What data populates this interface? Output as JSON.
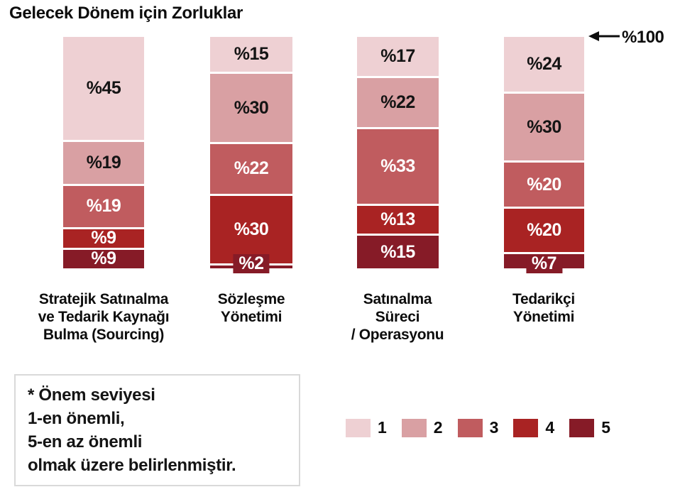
{
  "title": "Gelecek Dönem için Zorluklar",
  "annotation": {
    "max_label": "%100"
  },
  "note": {
    "text": "* Önem seviyesi\n1-en önemli,\n5-en az önemli\nolmak üzere belirlenmiştir."
  },
  "legend": {
    "items": [
      {
        "label": "1",
        "color": "#eed0d3"
      },
      {
        "label": "2",
        "color": "#d9a0a3"
      },
      {
        "label": "3",
        "color": "#c05c5f"
      },
      {
        "label": "4",
        "color": "#a92323"
      },
      {
        "label": "5",
        "color": "#861b27"
      }
    ]
  },
  "chart_data": {
    "type": "bar",
    "stacked": true,
    "orientation": "vertical",
    "units": "percent",
    "title": "Gelecek Dönem için Zorluklar",
    "ylim": [
      0,
      100
    ],
    "grid": false,
    "legend_position": "bottom-right",
    "legend_labels": [
      "1",
      "2",
      "3",
      "4",
      "5"
    ],
    "legend_note": "* Önem seviyesi 1-en önemli, 5-en az önemli olmak üzere belirlenmiştir.",
    "axis_annotation": "%100",
    "palette": {
      "1": "#eed0d3",
      "2": "#d9a0a3",
      "3": "#c05c5f",
      "4": "#a92323",
      "5": "#861b27"
    },
    "label_colors": {
      "1": "#141414",
      "2": "#141414",
      "3": "#ffffff",
      "4": "#ffffff",
      "5": "#ffffff"
    },
    "categories": [
      "Stratejik Satınalma\nve Tedarik Kaynağı\nBulma (Sourcing)",
      "Sözleşme\nYönetimi",
      "Satınalma\nSüreci\n/ Operasyonu",
      "Tedarikçi\nYönetimi"
    ],
    "series": [
      {
        "name": "1",
        "values": [
          45,
          15,
          17,
          24
        ]
      },
      {
        "name": "2",
        "values": [
          19,
          30,
          22,
          30
        ]
      },
      {
        "name": "3",
        "values": [
          19,
          22,
          33,
          20
        ]
      },
      {
        "name": "4",
        "values": [
          9,
          30,
          13,
          20
        ]
      },
      {
        "name": "5",
        "values": [
          9,
          2,
          15,
          7
        ]
      }
    ],
    "bars": [
      {
        "category": "Stratejik Satınalma\nve Tedarik Kaynağı\nBulma (Sourcing)",
        "segments": [
          {
            "level": "1",
            "value": 45,
            "label": "%45"
          },
          {
            "level": "2",
            "value": 19,
            "label": "%19"
          },
          {
            "level": "3",
            "value": 19,
            "label": "%19"
          },
          {
            "level": "4",
            "value": 9,
            "label": "%9"
          },
          {
            "level": "5",
            "value": 9,
            "label": "%9"
          }
        ]
      },
      {
        "category": "Sözleşme\nYönetimi",
        "segments": [
          {
            "level": "1",
            "value": 15,
            "label": "%15"
          },
          {
            "level": "2",
            "value": 30,
            "label": "%30"
          },
          {
            "level": "3",
            "value": 22,
            "label": "%22"
          },
          {
            "level": "4",
            "value": 30,
            "label": "%30"
          },
          {
            "level": "5",
            "value": 2,
            "label": "%2"
          }
        ]
      },
      {
        "category": "Satınalma\nSüreci\n/ Operasyonu",
        "segments": [
          {
            "level": "1",
            "value": 17,
            "label": "%17"
          },
          {
            "level": "2",
            "value": 22,
            "label": "%22"
          },
          {
            "level": "3",
            "value": 33,
            "label": "%33"
          },
          {
            "level": "4",
            "value": 13,
            "label": "%13"
          },
          {
            "level": "5",
            "value": 15,
            "label": "%15"
          }
        ]
      },
      {
        "category": "Tedarikçi\nYönetimi",
        "segments": [
          {
            "level": "1",
            "value": 24,
            "label": "%24"
          },
          {
            "level": "2",
            "value": 30,
            "label": "%30"
          },
          {
            "level": "3",
            "value": 20,
            "label": "%20"
          },
          {
            "level": "4",
            "value": 20,
            "label": "%20"
          },
          {
            "level": "5",
            "value": 7,
            "label": "%7"
          }
        ]
      }
    ]
  }
}
